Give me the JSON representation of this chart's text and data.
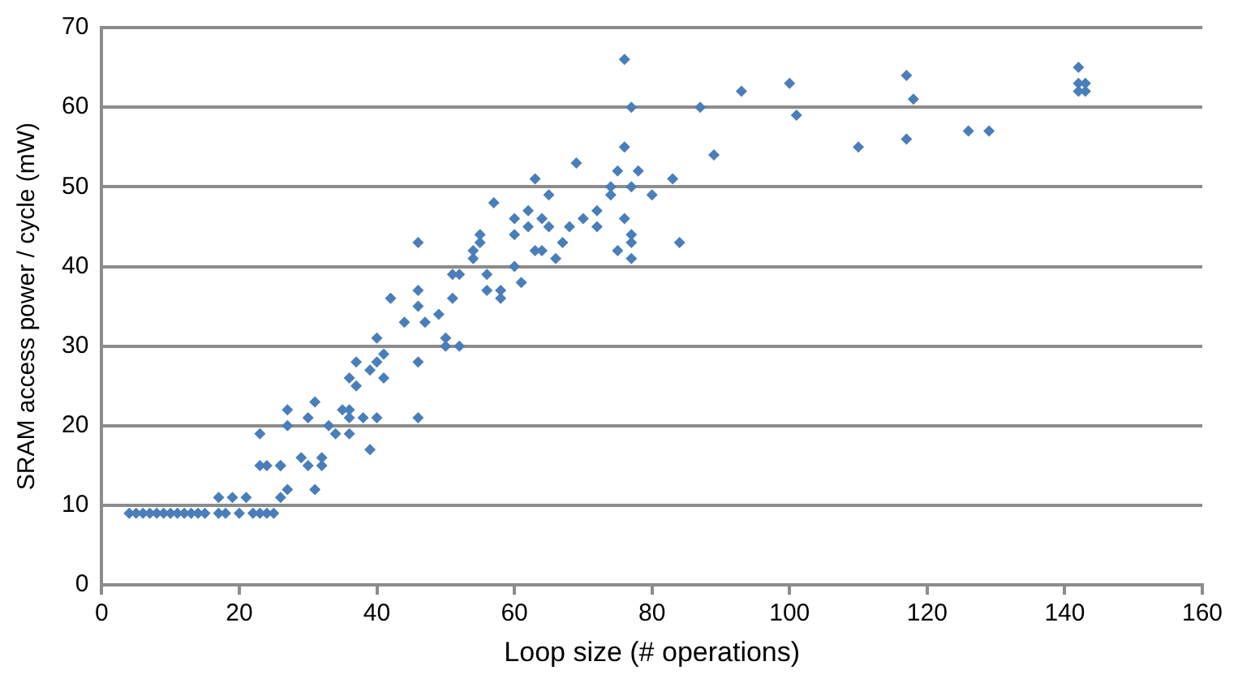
{
  "chart_data": {
    "type": "scatter",
    "xlabel": "Loop size (# operations)",
    "ylabel": "SRAM access power / cycle (mW)",
    "xlim": [
      0,
      160
    ],
    "xticks": [
      0,
      20,
      40,
      60,
      80,
      100,
      120,
      140,
      160
    ],
    "ylim": [
      0,
      70
    ],
    "yticks": [
      0,
      10,
      20,
      30,
      40,
      50,
      60,
      70
    ],
    "grid": "y",
    "legend": false,
    "marker": "diamond",
    "series": [
      {
        "color": "#4a7ebb",
        "x": [
          4,
          5,
          6,
          7,
          8,
          9,
          10,
          11,
          12,
          13,
          14,
          15,
          17,
          18,
          20,
          22,
          23,
          24,
          25,
          17,
          19,
          21,
          26,
          27,
          31,
          23,
          24,
          26,
          26,
          30,
          32,
          29,
          32,
          39,
          23,
          34,
          36,
          27,
          33,
          30,
          36,
          38,
          40,
          46,
          27,
          35,
          36,
          31,
          37,
          36,
          41,
          39,
          37,
          40,
          46,
          41,
          50,
          52,
          40,
          50,
          44,
          47,
          49,
          46,
          42,
          51,
          58,
          46,
          56,
          58,
          61,
          51,
          52,
          56,
          60,
          54,
          66,
          77,
          54,
          63,
          64,
          75,
          46,
          55,
          67,
          77,
          84,
          60,
          55,
          77,
          62,
          65,
          68,
          72,
          60,
          64,
          70,
          76,
          62,
          72,
          57,
          65,
          74,
          80,
          74,
          77,
          63,
          83,
          75,
          78,
          69,
          89,
          76,
          110,
          117,
          126,
          129,
          101,
          77,
          87,
          118,
          93,
          142,
          143,
          100,
          142,
          143,
          117,
          142,
          76
        ],
        "values": [
          9,
          9,
          9,
          9,
          9,
          9,
          9,
          9,
          9,
          9,
          9,
          9,
          9,
          9,
          9,
          9,
          9,
          9,
          9,
          11,
          11,
          11,
          11,
          12,
          12,
          15,
          15,
          15,
          15,
          15,
          15,
          16,
          16,
          17,
          19,
          19,
          19,
          20,
          20,
          21,
          21,
          21,
          21,
          21,
          22,
          22,
          22,
          23,
          25,
          26,
          26,
          27,
          28,
          28,
          28,
          29,
          30,
          30,
          31,
          31,
          33,
          33,
          34,
          35,
          36,
          36,
          36,
          37,
          37,
          37,
          38,
          39,
          39,
          39,
          40,
          41,
          41,
          41,
          42,
          42,
          42,
          42,
          43,
          43,
          43,
          43,
          43,
          44,
          44,
          44,
          45,
          45,
          45,
          45,
          46,
          46,
          46,
          46,
          47,
          47,
          48,
          49,
          49,
          49,
          50,
          50,
          51,
          51,
          52,
          52,
          53,
          54,
          55,
          55,
          56,
          57,
          57,
          59,
          60,
          60,
          61,
          62,
          62,
          62,
          63,
          63,
          63,
          64,
          65,
          66
        ]
      }
    ]
  }
}
